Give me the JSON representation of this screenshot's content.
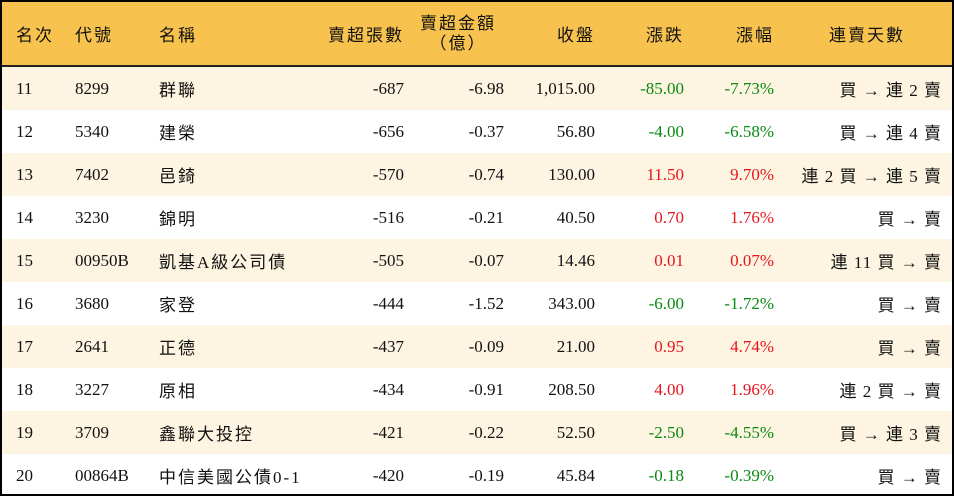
{
  "headers": {
    "rank": "名次",
    "code": "代號",
    "name": "名稱",
    "net_sell_lots": "賣超張數",
    "net_sell_amount_1": "賣超金額",
    "net_sell_amount_2": "（億）",
    "close": "收盤",
    "change": "漲跌",
    "change_pct": "漲幅",
    "streak": "連賣天數"
  },
  "colors": {
    "header_bg": "#F8C24E",
    "row_alt_bg": "#FDF5E2",
    "up": "#E8141C",
    "down": "#0A8A12"
  },
  "rows": [
    {
      "rank": "11",
      "code": "8299",
      "name": "群聯",
      "lots": "-687",
      "amount": "-6.98",
      "close": "1,015.00",
      "change": "-85.00",
      "pct": "-7.73%",
      "dir": "down",
      "streak": "買 → 連 2 賣"
    },
    {
      "rank": "12",
      "code": "5340",
      "name": "建榮",
      "lots": "-656",
      "amount": "-0.37",
      "close": "56.80",
      "change": "-4.00",
      "pct": "-6.58%",
      "dir": "down",
      "streak": "買 → 連 4 賣"
    },
    {
      "rank": "13",
      "code": "7402",
      "name": "邑錡",
      "lots": "-570",
      "amount": "-0.74",
      "close": "130.00",
      "change": "11.50",
      "pct": "9.70%",
      "dir": "up",
      "streak": "連 2 買 → 連 5 賣"
    },
    {
      "rank": "14",
      "code": "3230",
      "name": "錦明",
      "lots": "-516",
      "amount": "-0.21",
      "close": "40.50",
      "change": "0.70",
      "pct": "1.76%",
      "dir": "up",
      "streak": "買 → 賣"
    },
    {
      "rank": "15",
      "code": "00950B",
      "name": "凱基A級公司債",
      "lots": "-505",
      "amount": "-0.07",
      "close": "14.46",
      "change": "0.01",
      "pct": "0.07%",
      "dir": "up",
      "streak": "連 11 買 → 賣"
    },
    {
      "rank": "16",
      "code": "3680",
      "name": "家登",
      "lots": "-444",
      "amount": "-1.52",
      "close": "343.00",
      "change": "-6.00",
      "pct": "-1.72%",
      "dir": "down",
      "streak": "買 → 賣"
    },
    {
      "rank": "17",
      "code": "2641",
      "name": "正德",
      "lots": "-437",
      "amount": "-0.09",
      "close": "21.00",
      "change": "0.95",
      "pct": "4.74%",
      "dir": "up",
      "streak": "買 → 賣"
    },
    {
      "rank": "18",
      "code": "3227",
      "name": "原相",
      "lots": "-434",
      "amount": "-0.91",
      "close": "208.50",
      "change": "4.00",
      "pct": "1.96%",
      "dir": "up",
      "streak": "連 2 買 → 賣"
    },
    {
      "rank": "19",
      "code": "3709",
      "name": "鑫聯大投控",
      "lots": "-421",
      "amount": "-0.22",
      "close": "52.50",
      "change": "-2.50",
      "pct": "-4.55%",
      "dir": "down",
      "streak": "買 → 連 3 賣"
    },
    {
      "rank": "20",
      "code": "00864B",
      "name": "中信美國公債0-1",
      "lots": "-420",
      "amount": "-0.19",
      "close": "45.84",
      "change": "-0.18",
      "pct": "-0.39%",
      "dir": "down",
      "streak": "買 → 賣"
    }
  ]
}
